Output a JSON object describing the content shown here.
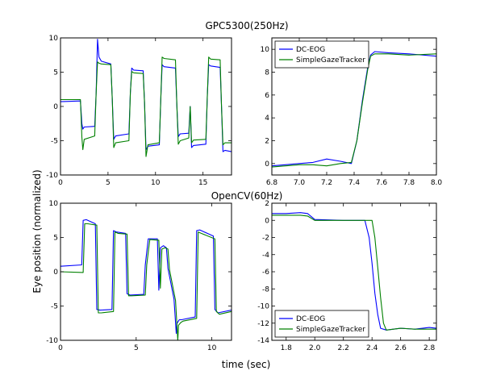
{
  "figure": {
    "top_title": "GPC5300(250Hz)",
    "bottom_title": "OpenCV(60Hz)",
    "ylabel": "Eye position (normalized)",
    "xlabel": "time (sec)"
  },
  "chart_data": [
    {
      "id": "top-left",
      "type": "line",
      "xlim": [
        0,
        18
      ],
      "ylim": [
        -10,
        10
      ],
      "xticks": [
        "0",
        "5",
        "10",
        "15"
      ],
      "xtick_values": [
        0,
        5,
        10,
        15
      ],
      "yticks": [
        "-10",
        "-5",
        "0",
        "5",
        "10"
      ],
      "ytick_values": [
        -10,
        -5,
        0,
        5,
        10
      ],
      "series": [
        {
          "name": "DC-EOG",
          "color": "#0000ff",
          "x": [
            0,
            2.1,
            2.25,
            2.35,
            2.5,
            3.6,
            3.75,
            3.9,
            4.05,
            4.3,
            5.3,
            5.45,
            5.6,
            5.8,
            7.2,
            7.35,
            7.5,
            7.7,
            8.7,
            8.85,
            9.0,
            9.2,
            10.4,
            10.55,
            10.7,
            10.9,
            12.1,
            12.25,
            12.4,
            12.6,
            13.5,
            13.65,
            13.8,
            14.0,
            15.3,
            15.45,
            15.6,
            15.8,
            16.8,
            16.95,
            17.1,
            17.3,
            18
          ],
          "y": [
            0.7,
            0.8,
            -2.5,
            -3.3,
            -3.0,
            -2.9,
            2.0,
            9.8,
            7.2,
            6.6,
            6.2,
            1.0,
            -4.8,
            -4.3,
            -4.0,
            2.0,
            5.6,
            5.3,
            5.2,
            0.5,
            -6.3,
            -5.8,
            -5.6,
            1.0,
            6.1,
            5.8,
            5.6,
            0.0,
            -4.4,
            -4.0,
            -3.9,
            0.0,
            -6.0,
            -5.7,
            -5.5,
            1.5,
            6.1,
            5.9,
            5.7,
            0.0,
            -6.6,
            -6.4,
            -6.6
          ]
        },
        {
          "name": "SimpleGazeTracker",
          "color": "#008000",
          "x": [
            0,
            2.1,
            2.25,
            2.35,
            2.5,
            3.6,
            3.75,
            3.9,
            4.05,
            4.3,
            5.3,
            5.45,
            5.6,
            5.8,
            7.2,
            7.35,
            7.5,
            7.7,
            8.7,
            8.85,
            9.0,
            9.2,
            10.4,
            10.55,
            10.7,
            10.9,
            12.1,
            12.25,
            12.4,
            12.6,
            13.5,
            13.65,
            13.8,
            14.0,
            15.3,
            15.45,
            15.6,
            15.8,
            16.8,
            16.95,
            17.1,
            17.3,
            18
          ],
          "y": [
            1.0,
            1.0,
            -4.5,
            -6.3,
            -4.8,
            -4.3,
            2.0,
            6.5,
            6.3,
            6.2,
            6.1,
            1.0,
            -6.0,
            -5.3,
            -5.0,
            2.0,
            5.1,
            4.9,
            4.8,
            0.5,
            -7.3,
            -5.6,
            -5.3,
            1.0,
            7.2,
            7.0,
            6.8,
            0.0,
            -5.5,
            -5.0,
            -4.6,
            0.0,
            -5.3,
            -4.9,
            -4.8,
            1.5,
            7.2,
            6.9,
            6.8,
            0.0,
            -5.6,
            -5.3,
            -5.3
          ]
        }
      ]
    },
    {
      "id": "top-right",
      "type": "line",
      "xlim": [
        6.8,
        8.0
      ],
      "ylim": [
        -1,
        11
      ],
      "xticks": [
        "6.8",
        "7.0",
        "7.2",
        "7.4",
        "7.6",
        "7.8",
        "8.0"
      ],
      "xtick_values": [
        6.8,
        7.0,
        7.2,
        7.4,
        7.6,
        7.8,
        8.0
      ],
      "yticks": [
        "0",
        "2",
        "4",
        "6",
        "8",
        "10"
      ],
      "ytick_values": [
        0,
        2,
        4,
        6,
        8,
        10
      ],
      "legend": "upper-left",
      "series": [
        {
          "name": "DC-EOG",
          "color": "#0000ff",
          "x": [
            6.8,
            7.0,
            7.1,
            7.2,
            7.3,
            7.38,
            7.42,
            7.46,
            7.5,
            7.52,
            7.55,
            7.65,
            7.8,
            8.0
          ],
          "y": [
            -0.2,
            0.0,
            0.1,
            0.4,
            0.2,
            0.0,
            2.0,
            5.5,
            8.5,
            9.5,
            9.8,
            9.7,
            9.6,
            9.4
          ]
        },
        {
          "name": "SimpleGazeTracker",
          "color": "#008000",
          "x": [
            6.8,
            7.0,
            7.1,
            7.2,
            7.3,
            7.38,
            7.42,
            7.46,
            7.5,
            7.52,
            7.55,
            7.65,
            7.8,
            8.0
          ],
          "y": [
            -0.3,
            -0.1,
            -0.1,
            -0.2,
            0.0,
            0.1,
            2.0,
            5.3,
            8.3,
            9.4,
            9.6,
            9.6,
            9.5,
            9.6
          ]
        }
      ]
    },
    {
      "id": "bottom-left",
      "type": "line",
      "xlim": [
        0,
        11.3
      ],
      "ylim": [
        -10,
        10
      ],
      "xticks": [
        "0",
        "5",
        "10"
      ],
      "xtick_values": [
        0,
        5,
        10
      ],
      "yticks": [
        "-10",
        "-5",
        "0",
        "5",
        "10"
      ],
      "ytick_values": [
        -10,
        -5,
        0,
        5,
        10
      ],
      "series": [
        {
          "name": "DC-EOG",
          "color": "#0000ff",
          "x": [
            0,
            1.4,
            1.5,
            1.7,
            2.3,
            2.4,
            2.6,
            3.4,
            3.5,
            3.7,
            4.3,
            4.4,
            4.6,
            5.5,
            5.6,
            5.8,
            6.4,
            6.5,
            6.6,
            6.8,
            7.0,
            7.1,
            7.5,
            7.65,
            7.7,
            7.85,
            8.0,
            8.9,
            9.0,
            9.2,
            10.1,
            10.2,
            10.4,
            11.3
          ],
          "y": [
            0.8,
            1.0,
            7.5,
            7.6,
            7.0,
            -5.5,
            -5.6,
            -5.5,
            6.0,
            5.8,
            5.6,
            -3.2,
            -3.4,
            -3.3,
            1.0,
            4.8,
            4.8,
            -2.7,
            3.5,
            3.8,
            3.5,
            0.5,
            -4.0,
            -9.0,
            -7.5,
            -7.0,
            -7.0,
            -6.6,
            6.0,
            6.1,
            5.2,
            -5.5,
            -6.0,
            -5.6
          ]
        },
        {
          "name": "SimpleGazeTracker",
          "color": "#008000",
          "x": [
            0,
            1.5,
            1.6,
            1.8,
            2.4,
            2.5,
            2.7,
            3.5,
            3.6,
            3.8,
            4.4,
            4.5,
            4.7,
            5.6,
            5.7,
            5.9,
            6.5,
            6.6,
            6.7,
            6.9,
            7.1,
            7.2,
            7.6,
            7.75,
            7.8,
            7.95,
            8.1,
            9.0,
            9.1,
            9.3,
            10.2,
            10.3,
            10.5,
            11.3
          ],
          "y": [
            0.0,
            -0.1,
            7.0,
            7.0,
            6.8,
            -6.0,
            -6.0,
            -5.8,
            5.8,
            5.6,
            5.5,
            -3.5,
            -3.5,
            -3.4,
            1.0,
            4.7,
            4.6,
            -2.4,
            3.3,
            3.5,
            3.3,
            0.3,
            -4.2,
            -10.0,
            -7.8,
            -7.4,
            -7.2,
            -6.8,
            5.8,
            5.6,
            4.8,
            -5.8,
            -6.2,
            -5.8
          ]
        }
      ]
    },
    {
      "id": "bottom-right",
      "type": "line",
      "xlim": [
        1.7,
        2.85
      ],
      "ylim": [
        -14,
        2
      ],
      "xticks": [
        "1.8",
        "2.0",
        "2.2",
        "2.4",
        "2.6",
        "2.8"
      ],
      "xtick_values": [
        1.8,
        2.0,
        2.2,
        2.4,
        2.6,
        2.8
      ],
      "yticks": [
        "-14",
        "-12",
        "-10",
        "-8",
        "-6",
        "-4",
        "-2",
        "0",
        "2"
      ],
      "ytick_values": [
        -14,
        -12,
        -10,
        -8,
        -6,
        -4,
        -2,
        0,
        2
      ],
      "legend": "lower-left",
      "series": [
        {
          "name": "DC-EOG",
          "color": "#0000ff",
          "x": [
            1.7,
            1.8,
            1.9,
            1.95,
            2.0,
            2.2,
            2.35,
            2.38,
            2.4,
            2.42,
            2.44,
            2.46,
            2.5,
            2.6,
            2.7,
            2.8,
            2.85
          ],
          "y": [
            0.8,
            0.8,
            0.9,
            0.8,
            0.1,
            0.0,
            0.0,
            -2.0,
            -5.0,
            -8.5,
            -11.0,
            -12.6,
            -12.8,
            -12.6,
            -12.7,
            -12.5,
            -12.6
          ]
        },
        {
          "name": "SimpleGazeTracker",
          "color": "#008000",
          "x": [
            1.7,
            1.8,
            1.9,
            1.95,
            2.0,
            2.2,
            2.4,
            2.42,
            2.44,
            2.46,
            2.48,
            2.5,
            2.55,
            2.6,
            2.7,
            2.8,
            2.85
          ],
          "y": [
            0.6,
            0.6,
            0.6,
            0.5,
            0.0,
            0.0,
            0.0,
            -2.0,
            -5.5,
            -9.0,
            -12.0,
            -12.8,
            -12.7,
            -12.6,
            -12.7,
            -12.7,
            -12.7
          ]
        }
      ]
    }
  ]
}
